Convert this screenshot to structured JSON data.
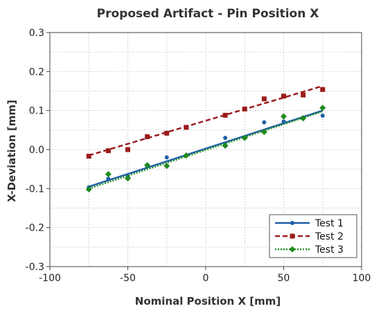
{
  "chart_data": {
    "type": "scatter",
    "title": "Proposed Artifact - Pin Position X",
    "xlabel": "Nominal Position X [mm]",
    "ylabel": "X-Deviation [mm]",
    "xlim": [
      -100,
      100
    ],
    "ylim": [
      -0.3,
      0.3
    ],
    "xticks": [
      -100,
      -50,
      0,
      50,
      100
    ],
    "xtick_labels": [
      "-100",
      "-50",
      "0",
      "50",
      "100"
    ],
    "yticks": [
      -0.3,
      -0.2,
      -0.1,
      0.0,
      0.1,
      0.2,
      0.3
    ],
    "ytick_labels": [
      "-0.3",
      "-0.2",
      "-0.1",
      "0.0",
      "0.1",
      "0.2",
      "0.3"
    ],
    "grid": true,
    "legend_position": "bottom-right",
    "series": [
      {
        "name": "Test 1",
        "color": "#1f5fa8",
        "marker": "circle",
        "line_style": "solid",
        "x": [
          -75,
          -62.5,
          -50,
          -37.5,
          -25,
          -12.5,
          12.5,
          25,
          37.5,
          50,
          62.5,
          75
        ],
        "y": [
          -0.097,
          -0.075,
          -0.07,
          -0.042,
          -0.02,
          -0.015,
          0.03,
          0.03,
          0.07,
          0.072,
          0.082,
          0.087
        ],
        "fit": [
          [
            -75,
            -0.095
          ],
          [
            75,
            0.1
          ]
        ]
      },
      {
        "name": "Test 2",
        "color": "#9b1b1b",
        "marker": "square",
        "line_style": "dashed",
        "x": [
          -75,
          -62.5,
          -50,
          -37.5,
          -25,
          -12.5,
          12.5,
          25,
          37.5,
          50,
          62.5,
          75
        ],
        "y": [
          -0.017,
          -0.003,
          0.0,
          0.033,
          0.042,
          0.057,
          0.088,
          0.104,
          0.13,
          0.137,
          0.14,
          0.154
        ],
        "fit": [
          [
            -75,
            -0.015
          ],
          [
            75,
            0.163
          ]
        ]
      },
      {
        "name": "Test 3",
        "color": "#1e8a1e",
        "marker": "diamond",
        "line_style": "dotted",
        "x": [
          -75,
          -62.5,
          -50,
          -37.5,
          -25,
          -12.5,
          12.5,
          25,
          37.5,
          50,
          62.5,
          75
        ],
        "y": [
          -0.102,
          -0.063,
          -0.074,
          -0.04,
          -0.042,
          -0.015,
          0.01,
          0.03,
          0.045,
          0.085,
          0.08,
          0.107
        ],
        "fit": [
          [
            -75,
            -0.1
          ],
          [
            75,
            0.098
          ]
        ]
      }
    ]
  }
}
